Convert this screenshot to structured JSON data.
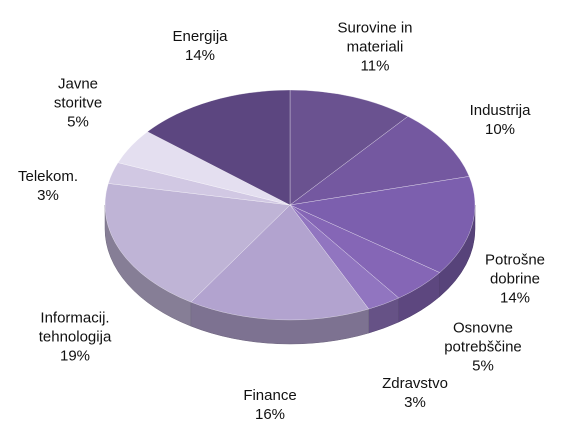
{
  "chart_data": {
    "type": "pie",
    "categories": [
      "Surovine in materiali",
      "Industrija",
      "Potrošne dobrine",
      "Osnovne potrebščine",
      "Zdravstvo",
      "Finance",
      "Informacij. tehnologija",
      "Telekom.",
      "Javne storitve",
      "Energija"
    ],
    "values": [
      11,
      10,
      14,
      5,
      3,
      16,
      19,
      3,
      5,
      14
    ],
    "value_labels": [
      "11%",
      "10%",
      "14%",
      "5%",
      "3%",
      "16%",
      "19%",
      "3%",
      "5%",
      "14%"
    ],
    "colors": [
      "#6a5290",
      "#7458a0",
      "#7c5fae",
      "#8566b6",
      "#9175c0",
      "#b2a3cf",
      "#bfb4d6",
      "#d1c8e3",
      "#e4dff0",
      "#5c4680"
    ]
  }
}
